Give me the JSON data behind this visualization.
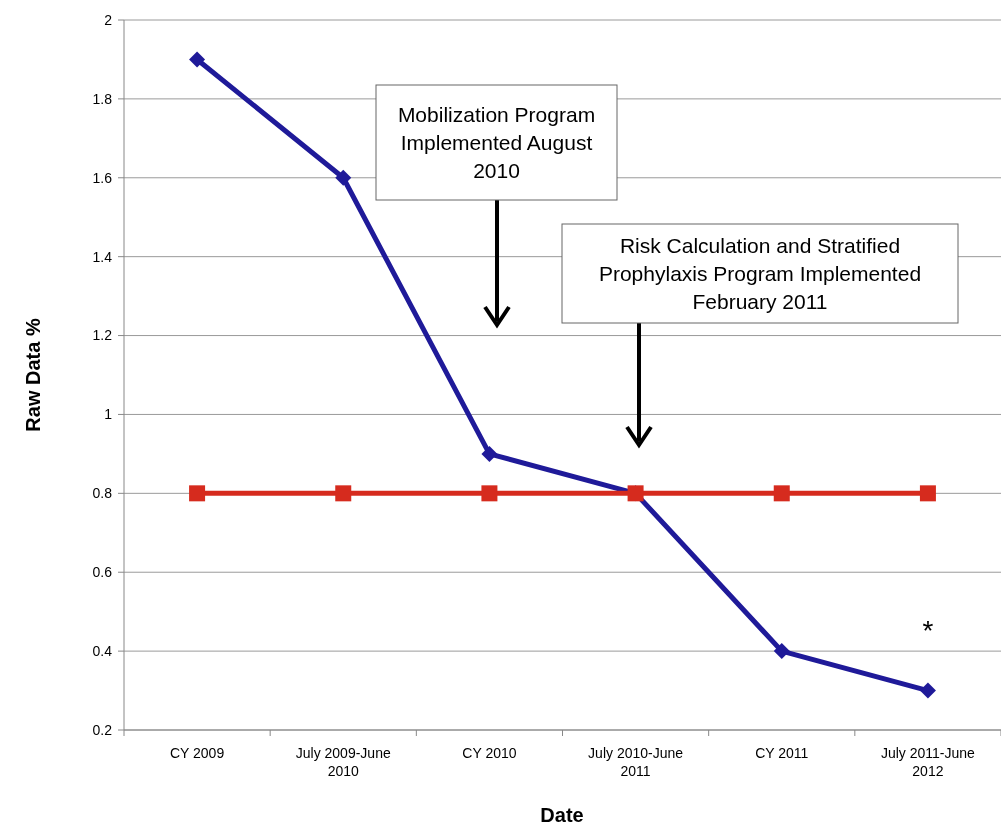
{
  "chart_data": {
    "type": "line",
    "xlabel": "Date",
    "ylabel": "Raw Data %",
    "categories": [
      "CY 2009",
      "July 2009-June 2010",
      "CY 2010",
      "July 2010-June 2011",
      "CY 2011",
      "July 2011-June 2012"
    ],
    "series": [
      {
        "color": "#1f1a99",
        "values": [
          1.9,
          1.6,
          0.9,
          0.8,
          0.4,
          0.3
        ],
        "marker": "diamond"
      },
      {
        "color": "#d62b1e",
        "values": [
          0.8,
          0.8,
          0.8,
          0.8,
          0.8,
          0.8
        ],
        "marker": "square"
      }
    ],
    "ylim": [
      0.2,
      2
    ],
    "yticks": [
      0.2,
      0.4,
      0.6,
      {
        "value": 0.8,
        "label": "0.8"
      },
      {
        "value": 1,
        "label": "1"
      },
      1.2,
      1.4,
      1.6,
      1.8,
      {
        "value": 2,
        "label": "2"
      }
    ],
    "grid": "y",
    "annotations": [
      "Mobilization Program Implemented August 2010",
      "Risk Calculation and Stratified Prophylaxis Program Implemented February 2011",
      "*"
    ]
  }
}
